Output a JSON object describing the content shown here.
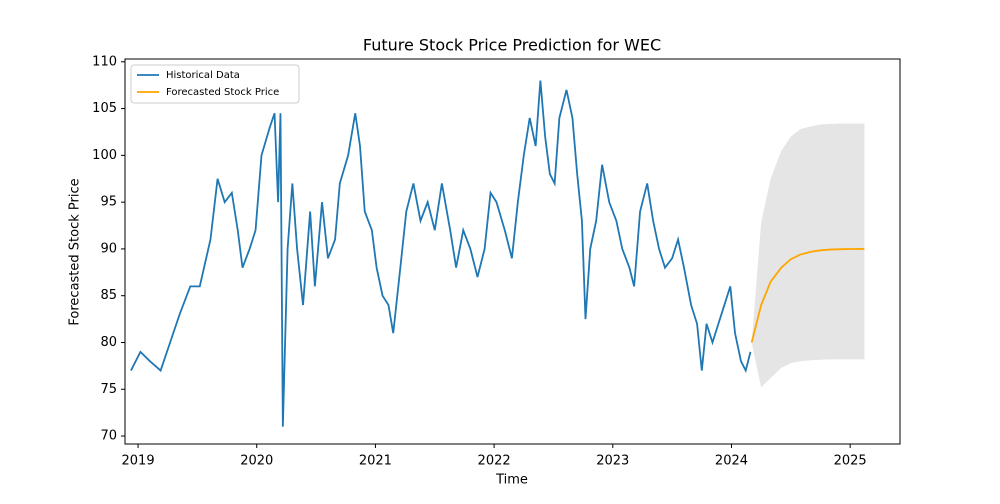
{
  "chart_data": {
    "type": "line",
    "title": "Future Stock Price Prediction for WEC",
    "xlabel": "Time",
    "ylabel": "Forecasted Stock Price",
    "xlim": [
      2018.89,
      2025.42
    ],
    "ylim": [
      69.15,
      110.3
    ],
    "xticks": [
      2019,
      2020,
      2021,
      2022,
      2023,
      2024,
      2025
    ],
    "yticks": [
      70,
      75,
      80,
      85,
      90,
      95,
      100,
      105,
      110
    ],
    "legend": "upper left",
    "series": [
      {
        "name": "Historical Data",
        "color": "#1f77b4",
        "x": [
          2018.94,
          2019.02,
          2019.1,
          2019.19,
          2019.27,
          2019.35,
          2019.44,
          2019.52,
          2019.61,
          2019.67,
          2019.73,
          2019.79,
          2019.84,
          2019.88,
          2019.94,
          2019.99,
          2020.04,
          2020.11,
          2020.15,
          2020.18,
          2020.2,
          2020.22,
          2020.26,
          2020.3,
          2020.34,
          2020.39,
          2020.45,
          2020.49,
          2020.55,
          2020.6,
          2020.66,
          2020.7,
          2020.77,
          2020.83,
          2020.87,
          2020.91,
          2020.97,
          2021.01,
          2021.06,
          2021.11,
          2021.15,
          2021.21,
          2021.26,
          2021.32,
          2021.38,
          2021.44,
          2021.5,
          2021.56,
          2021.63,
          2021.68,
          2021.74,
          2021.8,
          2021.86,
          2021.92,
          2021.97,
          2022.02,
          2022.09,
          2022.15,
          2022.2,
          2022.25,
          2022.3,
          2022.35,
          2022.39,
          2022.43,
          2022.47,
          2022.51,
          2022.55,
          2022.61,
          2022.66,
          2022.7,
          2022.74,
          2022.77,
          2022.81,
          2022.86,
          2022.91,
          2022.97,
          2023.03,
          2023.08,
          2023.14,
          2023.18,
          2023.23,
          2023.29,
          2023.34,
          2023.39,
          2023.44,
          2023.5,
          2023.55,
          2023.6,
          2023.66,
          2023.71,
          2023.75,
          2023.79,
          2023.84,
          2023.89,
          2023.94,
          2023.99,
          2024.03,
          2024.08,
          2024.12,
          2024.16
        ],
        "values": [
          77,
          79,
          78,
          77,
          80,
          83,
          86,
          86,
          91,
          97.5,
          95,
          96,
          92,
          88,
          90,
          92,
          100,
          103,
          104.5,
          95,
          104.5,
          71,
          90,
          97,
          90,
          84,
          94,
          86,
          95,
          89,
          91,
          97,
          100,
          104.5,
          101,
          94,
          92,
          88,
          85,
          84,
          81,
          88,
          94,
          97,
          93,
          95,
          92,
          97,
          92,
          88,
          92,
          90,
          87,
          90,
          96,
          95,
          92,
          89,
          95,
          100,
          104,
          101,
          108,
          102,
          98,
          97,
          104,
          107,
          104,
          98,
          93,
          82.5,
          90,
          93,
          99,
          95,
          93,
          90,
          88,
          86,
          94,
          97,
          93,
          90,
          88,
          89,
          91,
          88,
          84,
          82,
          77,
          82,
          80,
          82,
          84,
          86,
          81,
          78,
          77,
          79
        ]
      },
      {
        "name": "Forecasted Stock Price",
        "color": "#ffa500",
        "x": [
          2024.17,
          2024.25,
          2024.33,
          2024.42,
          2024.5,
          2024.58,
          2024.67,
          2024.75,
          2024.83,
          2024.92,
          2025.0,
          2025.12
        ],
        "values": [
          80,
          84,
          86.5,
          88,
          88.9,
          89.4,
          89.7,
          89.85,
          89.93,
          89.97,
          89.99,
          90
        ]
      }
    ],
    "band": {
      "color": "#d3d3d3",
      "lower": [
        80,
        75.2,
        76.2,
        77.3,
        77.8,
        78.0,
        78.1,
        78.15,
        78.2,
        78.2,
        78.2,
        78.2
      ],
      "upper": [
        80,
        92.8,
        97.5,
        100.5,
        102,
        102.8,
        103.1,
        103.3,
        103.35,
        103.4,
        103.4,
        103.4
      ]
    }
  }
}
